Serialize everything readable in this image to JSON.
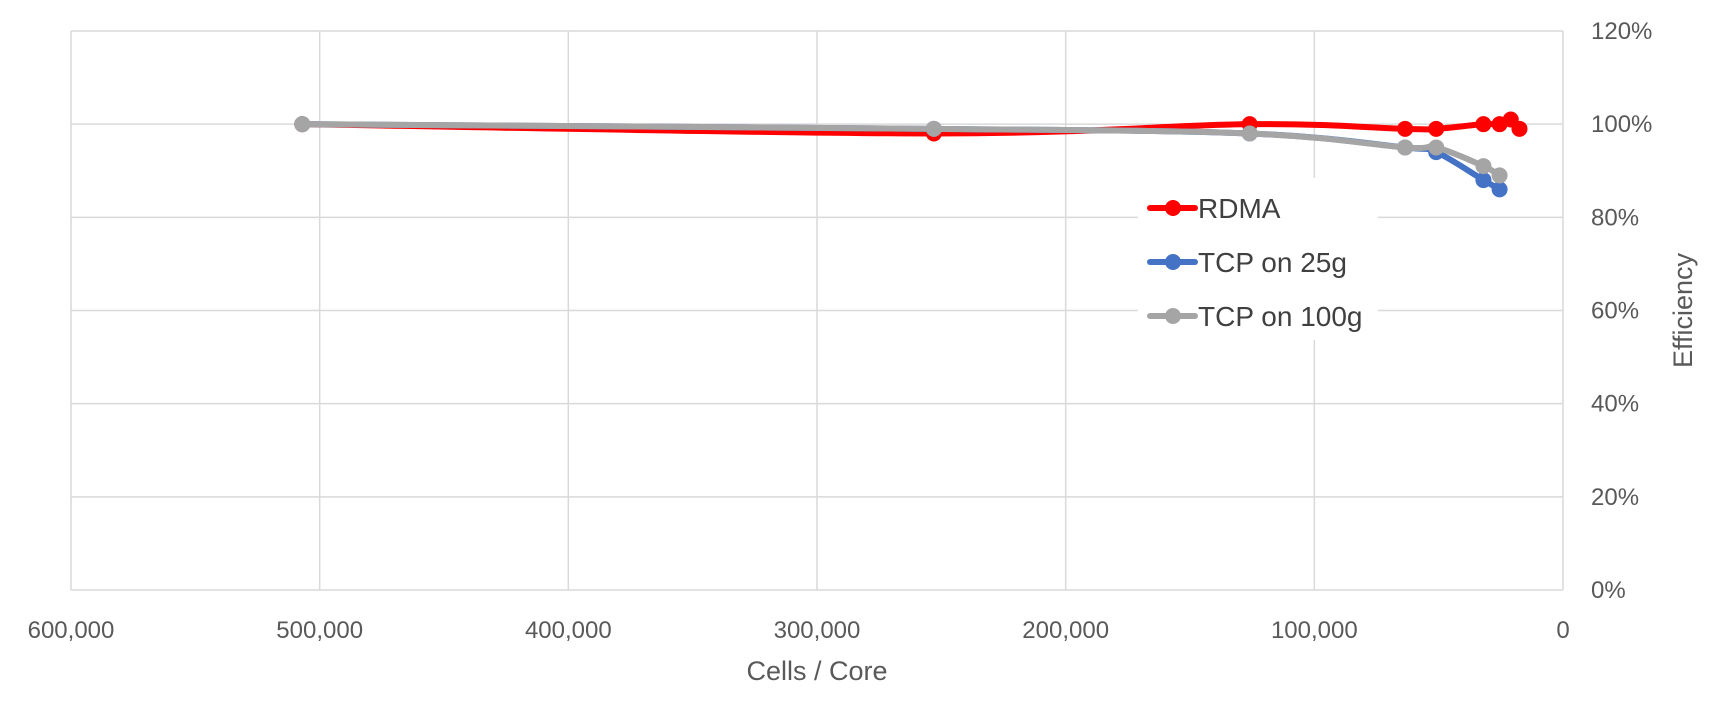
{
  "chart_data": {
    "type": "line",
    "title": "",
    "xlabel": "Cells / Core",
    "ylabel": "Efficiency",
    "x_reversed": true,
    "xlim": [
      0,
      600000
    ],
    "ylim": [
      0,
      1.2
    ],
    "x_ticks": [
      "600,000",
      "500,000",
      "400,000",
      "300,000",
      "200,000",
      "100,000",
      "0"
    ],
    "x_tick_values": [
      600000,
      500000,
      400000,
      300000,
      200000,
      100000,
      0
    ],
    "y_ticks": [
      "0%",
      "20%",
      "40%",
      "60%",
      "80%",
      "100%",
      "120%"
    ],
    "y_tick_values": [
      0,
      0.2,
      0.4,
      0.6,
      0.8,
      1.0,
      1.2
    ],
    "y_axis_position": "right",
    "grid": true,
    "legend_position": "center-right",
    "series": [
      {
        "name": "RDMA",
        "color": "#FF0000",
        "x": [
          507000,
          253000,
          126000,
          63500,
          51000,
          32000,
          25500,
          21000,
          17500
        ],
        "y": [
          1.0,
          0.98,
          1.0,
          0.99,
          0.99,
          1.0,
          1.0,
          1.01,
          0.99
        ]
      },
      {
        "name": "TCP on 25g",
        "color": "#4472C4",
        "x": [
          507000,
          253000,
          126000,
          63500,
          51000,
          32000,
          25500
        ],
        "y": [
          1.0,
          0.99,
          0.98,
          0.95,
          0.94,
          0.88,
          0.86
        ]
      },
      {
        "name": "TCP on 100g",
        "color": "#A5A5A5",
        "x": [
          507000,
          253000,
          126000,
          63500,
          51000,
          32000,
          25500
        ],
        "y": [
          1.0,
          0.99,
          0.98,
          0.95,
          0.95,
          0.91,
          0.89
        ]
      }
    ]
  }
}
